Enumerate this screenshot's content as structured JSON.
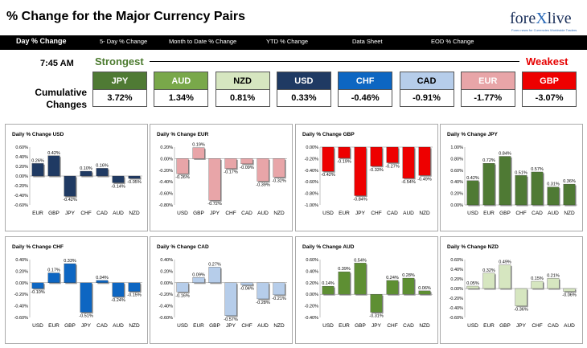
{
  "header": {
    "title": "% Change for the Major Currency Pairs",
    "logo_a": "fore",
    "logo_b": "X",
    "logo_c": "live",
    "logo_sub": "Forex news for Currencies Worldwide Traders"
  },
  "tabs": [
    "Day % Change",
    "5- Day % Change",
    "Month to Date % Change",
    "YTD % Change",
    "Data Sheet",
    "EOD % Change"
  ],
  "summary": {
    "time": "7:45 AM",
    "strongest": "Strongest",
    "weakest": "Weakest",
    "row_label_1": "Cumulative",
    "row_label_2": "Changes",
    "items": [
      {
        "ccy": "JPY",
        "value": "3.72%",
        "color": "#4f7a34",
        "text": "#ffffff"
      },
      {
        "ccy": "AUD",
        "value": "1.34%",
        "color": "#79a84a",
        "text": "#ffffff"
      },
      {
        "ccy": "NZD",
        "value": "0.81%",
        "color": "#d6e6c0",
        "text": "#000000"
      },
      {
        "ccy": "USD",
        "value": "0.33%",
        "color": "#1f3a63",
        "text": "#ffffff"
      },
      {
        "ccy": "CHF",
        "value": "-0.46%",
        "color": "#0d66c2",
        "text": "#ffffff"
      },
      {
        "ccy": "CAD",
        "value": "-0.91%",
        "color": "#b6cdea",
        "text": "#000000"
      },
      {
        "ccy": "EUR",
        "value": "-1.77%",
        "color": "#e8a5a8",
        "text": "#ffffff"
      },
      {
        "ccy": "GBP",
        "value": "-3.07%",
        "color": "#ee0000",
        "text": "#ffffff"
      }
    ]
  },
  "chart_data": [
    {
      "type": "bar",
      "title": "Daily % Change USD",
      "categories": [
        "EUR",
        "GBP",
        "JPY",
        "CHF",
        "CAD",
        "AUD",
        "NZD"
      ],
      "values": [
        0.26,
        0.42,
        -0.42,
        0.1,
        0.16,
        -0.14,
        -0.05
      ],
      "labels": [
        "0.26%",
        "0.42%",
        "-0.42%",
        "0.10%",
        "0.16%",
        "-0.14%",
        "-0.05%"
      ],
      "ylim": [
        -0.6,
        0.6
      ],
      "ticks": [
        "0.60%",
        "0.40%",
        "0.20%",
        "0.00%",
        "-0.20%",
        "-0.40%",
        "-0.60%"
      ],
      "tickvals": [
        0.6,
        0.4,
        0.2,
        0,
        -0.2,
        -0.4,
        -0.6
      ],
      "color": "#1f3a63"
    },
    {
      "type": "bar",
      "title": "Daily % Change EUR",
      "categories": [
        "USD",
        "GBP",
        "JPY",
        "CHF",
        "CAD",
        "AUD",
        "NZD"
      ],
      "values": [
        -0.26,
        0.19,
        -0.72,
        -0.17,
        -0.09,
        -0.39,
        -0.32
      ],
      "labels": [
        "-0.26%",
        "0.19%",
        "-0.72%",
        "-0.17%",
        "-0.09%",
        "-0.39%",
        "-0.32%"
      ],
      "ylim": [
        -0.8,
        0.2
      ],
      "ticks": [
        "0.20%",
        "0.00%",
        "-0.20%",
        "-0.40%",
        "-0.60%",
        "-0.80%"
      ],
      "tickvals": [
        0.2,
        0,
        -0.2,
        -0.4,
        -0.6,
        -0.8
      ],
      "color": "#e8a5a8"
    },
    {
      "type": "bar",
      "title": "Daily % Change GBP",
      "categories": [
        "USD",
        "EUR",
        "JPY",
        "CHF",
        "CAD",
        "AUD",
        "NZD"
      ],
      "values": [
        -0.42,
        -0.19,
        -0.84,
        -0.33,
        -0.27,
        -0.54,
        -0.49
      ],
      "labels": [
        "-0.42%",
        "-0.19%",
        "-0.84%",
        "-0.33%",
        "-0.27%",
        "-0.54%",
        "-0.49%"
      ],
      "ylim": [
        -1.0,
        0.0
      ],
      "ticks": [
        "0.00%",
        "-0.20%",
        "-0.40%",
        "-0.60%",
        "-0.80%",
        "-1.00%"
      ],
      "tickvals": [
        0,
        -0.2,
        -0.4,
        -0.6,
        -0.8,
        -1.0
      ],
      "color": "#ee0000"
    },
    {
      "type": "bar",
      "title": "Daily % Change JPY",
      "categories": [
        "USD",
        "EUR",
        "GBP",
        "CHF",
        "CAD",
        "AUD",
        "NZD"
      ],
      "values": [
        0.42,
        0.72,
        0.84,
        0.51,
        0.57,
        0.31,
        0.36
      ],
      "labels": [
        "0.42%",
        "0.72%",
        "0.84%",
        "0.51%",
        "0.57%",
        "0.31%",
        "0.36%"
      ],
      "ylim": [
        0.0,
        1.0
      ],
      "ticks": [
        "1.00%",
        "0.80%",
        "0.60%",
        "0.40%",
        "0.20%",
        "0.00%"
      ],
      "tickvals": [
        1.0,
        0.8,
        0.6,
        0.4,
        0.2,
        0
      ],
      "color": "#4f7a34"
    },
    {
      "type": "bar",
      "title": "Daily % Change CHF",
      "categories": [
        "USD",
        "EUR",
        "GBP",
        "JPY",
        "CAD",
        "AUD",
        "NZD"
      ],
      "values": [
        -0.1,
        0.17,
        0.33,
        -0.51,
        0.04,
        -0.24,
        -0.15
      ],
      "labels": [
        "-0.10%",
        "0.17%",
        "0.33%",
        "-0.51%",
        "0.04%",
        "-0.24%",
        "-0.15%"
      ],
      "ylim": [
        -0.6,
        0.4
      ],
      "ticks": [
        "0.40%",
        "0.20%",
        "0.00%",
        "-0.20%",
        "-0.40%",
        "-0.60%"
      ],
      "tickvals": [
        0.4,
        0.2,
        0,
        -0.2,
        -0.4,
        -0.6
      ],
      "color": "#0d66c2"
    },
    {
      "type": "bar",
      "title": "Daily % Change CAD",
      "categories": [
        "USD",
        "EUR",
        "GBP",
        "JPY",
        "CHF",
        "AUD",
        "NZD"
      ],
      "values": [
        -0.16,
        0.09,
        0.27,
        -0.57,
        -0.04,
        -0.28,
        -0.21
      ],
      "labels": [
        "-0.16%",
        "0.09%",
        "0.27%",
        "-0.57%",
        "-0.04%",
        "-0.28%",
        "-0.21%"
      ],
      "ylim": [
        -0.6,
        0.4
      ],
      "ticks": [
        "0.40%",
        "0.20%",
        "0.00%",
        "-0.20%",
        "-0.40%",
        "-0.60%"
      ],
      "tickvals": [
        0.4,
        0.2,
        0,
        -0.2,
        -0.4,
        -0.6
      ],
      "color": "#b6cdea"
    },
    {
      "type": "bar",
      "title": "Daily % Change AUD",
      "categories": [
        "USD",
        "EUR",
        "GBP",
        "JPY",
        "CHF",
        "CAD",
        "NZD"
      ],
      "values": [
        0.14,
        0.39,
        0.54,
        -0.31,
        0.24,
        0.28,
        0.06
      ],
      "labels": [
        "0.14%",
        "0.39%",
        "0.54%",
        "-0.31%",
        "0.24%",
        "0.28%",
        "0.06%"
      ],
      "ylim": [
        -0.4,
        0.6
      ],
      "ticks": [
        "0.60%",
        "0.40%",
        "0.20%",
        "0.00%",
        "-0.20%",
        "-0.40%"
      ],
      "tickvals": [
        0.6,
        0.4,
        0.2,
        0,
        -0.2,
        -0.4
      ],
      "color": "#5e8f33"
    },
    {
      "type": "bar",
      "title": "Daily % Change NZD",
      "categories": [
        "USD",
        "EUR",
        "GBP",
        "JPY",
        "CHF",
        "CAD",
        "AUD"
      ],
      "values": [
        0.05,
        0.32,
        0.49,
        -0.36,
        0.15,
        0.21,
        -0.06
      ],
      "labels": [
        "0.05%",
        "0.32%",
        "0.49%",
        "-0.36%",
        "0.15%",
        "0.21%",
        "-0.06%"
      ],
      "ylim": [
        -0.6,
        0.6
      ],
      "ticks": [
        "0.60%",
        "0.40%",
        "0.20%",
        "0.00%",
        "-0.20%",
        "-0.40%",
        "-0.60%"
      ],
      "tickvals": [
        0.6,
        0.4,
        0.2,
        0,
        -0.2,
        -0.4,
        -0.6
      ],
      "color": "#d6e6c0"
    }
  ]
}
